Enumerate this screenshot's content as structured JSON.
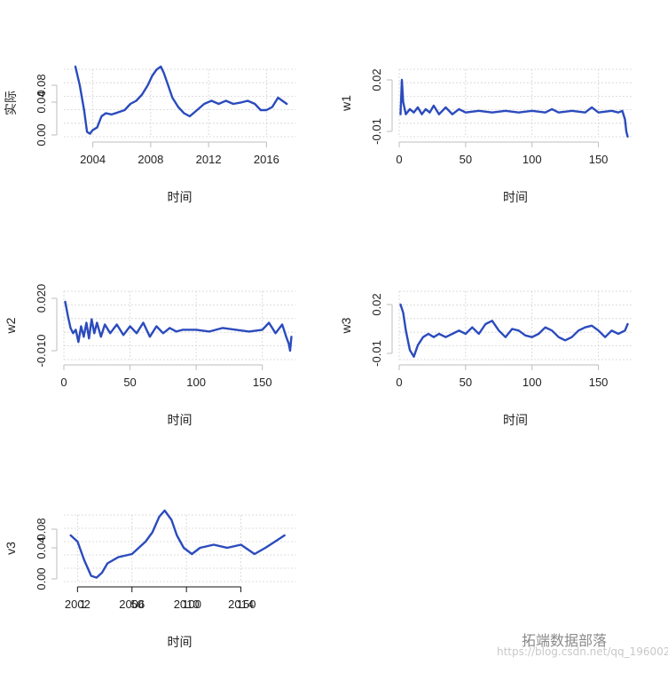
{
  "colors": {
    "series": "#2b4bbd",
    "grid": "#d3d3d3",
    "axis": "#bdbdbd"
  },
  "watermarks": [
    "拓端数据部落",
    "https://blog.csdn.net/qq_19600291"
  ],
  "chart_data": [
    {
      "type": "line",
      "xlabel": "时间",
      "ylabel": "实际",
      "x_ticks": [
        "2004",
        "2008",
        "2012",
        "2016"
      ],
      "y_ticks": [
        "0.00",
        "0.04",
        "0.08"
      ],
      "xlim": [
        2002,
        2018
      ],
      "ylim": [
        -0.005,
        0.12
      ],
      "series": [
        {
          "x": [
            2002.8,
            2003.1,
            2003.4,
            2003.6,
            2003.8,
            2004.0,
            2004.3,
            2004.6,
            2004.9,
            2005.3,
            2005.7,
            2006.2,
            2006.6,
            2007.0,
            2007.4,
            2007.8,
            2008.1,
            2008.4,
            2008.7,
            2008.9,
            2009.2,
            2009.5,
            2009.9,
            2010.3,
            2010.7,
            2011.2,
            2011.7,
            2012.2,
            2012.7,
            2013.2,
            2013.7,
            2014.2,
            2014.7,
            2015.2,
            2015.6,
            2016.0,
            2016.4,
            2016.8,
            2017.1,
            2017.4
          ],
          "y": [
            0.11,
            0.08,
            0.04,
            0.005,
            0.002,
            0.008,
            0.012,
            0.03,
            0.035,
            0.033,
            0.036,
            0.04,
            0.05,
            0.055,
            0.065,
            0.08,
            0.095,
            0.105,
            0.11,
            0.1,
            0.08,
            0.06,
            0.045,
            0.035,
            0.03,
            0.04,
            0.05,
            0.055,
            0.05,
            0.055,
            0.05,
            0.052,
            0.055,
            0.05,
            0.04,
            0.04,
            0.045,
            0.06,
            0.055,
            0.05
          ]
        }
      ]
    },
    {
      "type": "line",
      "xlabel": "时间",
      "ylabel": "w1",
      "x_ticks": [
        "0",
        "50",
        "100",
        "150"
      ],
      "y_ticks": [
        "-0.01",
        "0.02"
      ],
      "xlim": [
        0,
        175
      ],
      "ylim": [
        -0.016,
        0.024
      ],
      "series": [
        {
          "x": [
            1,
            2,
            3,
            5,
            8,
            11,
            14,
            17,
            20,
            23,
            26,
            30,
            35,
            40,
            45,
            50,
            60,
            70,
            80,
            90,
            100,
            110,
            115,
            120,
            130,
            140,
            145,
            150,
            160,
            165,
            168,
            170,
            171,
            172
          ],
          "y": [
            0.0,
            0.02,
            0.007,
            0.0,
            0.003,
            0.001,
            0.004,
            0.0,
            0.003,
            0.001,
            0.005,
            0.0,
            0.004,
            0.0,
            0.003,
            0.001,
            0.002,
            0.001,
            0.002,
            0.001,
            0.002,
            0.001,
            0.003,
            0.001,
            0.002,
            0.001,
            0.004,
            0.001,
            0.002,
            0.001,
            0.002,
            -0.003,
            -0.01,
            -0.013
          ]
        }
      ]
    },
    {
      "type": "line",
      "xlabel": "时间",
      "ylabel": "w2",
      "x_ticks": [
        "0",
        "50",
        "100",
        "150"
      ],
      "y_ticks": [
        "-0.010",
        "0.020"
      ],
      "xlim": [
        0,
        175
      ],
      "ylim": [
        -0.018,
        0.026
      ],
      "series": [
        {
          "x": [
            1,
            3,
            5,
            7,
            9,
            11,
            13,
            15,
            17,
            19,
            21,
            23,
            25,
            28,
            31,
            35,
            40,
            45,
            50,
            55,
            60,
            65,
            70,
            75,
            80,
            85,
            90,
            100,
            110,
            120,
            130,
            140,
            150,
            155,
            160,
            165,
            168,
            170,
            171,
            172
          ],
          "y": [
            0.018,
            0.01,
            0.003,
            0.0,
            0.002,
            -0.005,
            0.004,
            -0.002,
            0.006,
            -0.003,
            0.008,
            0.0,
            0.006,
            -0.002,
            0.005,
            0.0,
            0.005,
            -0.001,
            0.004,
            0.0,
            0.006,
            -0.002,
            0.004,
            0.0,
            0.003,
            0.001,
            0.002,
            0.002,
            0.001,
            0.003,
            0.002,
            0.001,
            0.002,
            0.006,
            0.0,
            0.005,
            -0.002,
            -0.006,
            -0.01,
            -0.002
          ]
        }
      ]
    },
    {
      "type": "line",
      "xlabel": "时间",
      "ylabel": "w3",
      "x_ticks": [
        "0",
        "50",
        "100",
        "150"
      ],
      "y_ticks": [
        "-0.01",
        "0.02"
      ],
      "xlim": [
        0,
        175
      ],
      "ylim": [
        -0.016,
        0.024
      ],
      "series": [
        {
          "x": [
            1,
            3,
            5,
            8,
            11,
            14,
            18,
            22,
            26,
            30,
            35,
            40,
            45,
            50,
            55,
            60,
            65,
            70,
            75,
            80,
            85,
            90,
            95,
            100,
            105,
            110,
            115,
            120,
            125,
            130,
            135,
            140,
            145,
            150,
            155,
            160,
            165,
            170,
            172
          ],
          "y": [
            0.02,
            0.015,
            0.004,
            -0.008,
            -0.012,
            -0.005,
            0.0,
            0.002,
            0.0,
            0.002,
            0.0,
            0.002,
            0.004,
            0.002,
            0.006,
            0.002,
            0.008,
            0.01,
            0.004,
            0.0,
            0.005,
            0.004,
            0.001,
            0.0,
            0.002,
            0.006,
            0.004,
            0.0,
            -0.002,
            0.0,
            0.004,
            0.006,
            0.007,
            0.004,
            0.0,
            0.004,
            0.002,
            0.004,
            0.008
          ]
        }
      ]
    },
    {
      "type": "line",
      "xlabel": "时间",
      "ylabel": "v3",
      "x_ticks": [
        "2002",
        "2006",
        "2010",
        "2014"
      ],
      "x_ticks_overlay": [
        "1",
        "50",
        "100",
        "150"
      ],
      "y_ticks": [
        "0.00",
        "0.04",
        "0.08"
      ],
      "xlim": [
        2001,
        2018
      ],
      "ylim": [
        -0.005,
        0.12
      ],
      "series": [
        {
          "x": [
            2001.5,
            2002.0,
            2002.5,
            2003.0,
            2003.4,
            2003.8,
            2004.2,
            2005.0,
            2006.0,
            2007.0,
            2007.5,
            2008.0,
            2008.4,
            2008.9,
            2009.3,
            2009.8,
            2010.4,
            2011.0,
            2012.0,
            2013.0,
            2014.0,
            2015.0,
            2015.8,
            2016.5,
            2017.2
          ],
          "y": [
            0.07,
            0.06,
            0.03,
            0.005,
            0.002,
            0.01,
            0.025,
            0.035,
            0.04,
            0.06,
            0.075,
            0.1,
            0.11,
            0.095,
            0.07,
            0.05,
            0.04,
            0.05,
            0.055,
            0.05,
            0.055,
            0.04,
            0.05,
            0.06,
            0.07
          ]
        }
      ]
    }
  ]
}
